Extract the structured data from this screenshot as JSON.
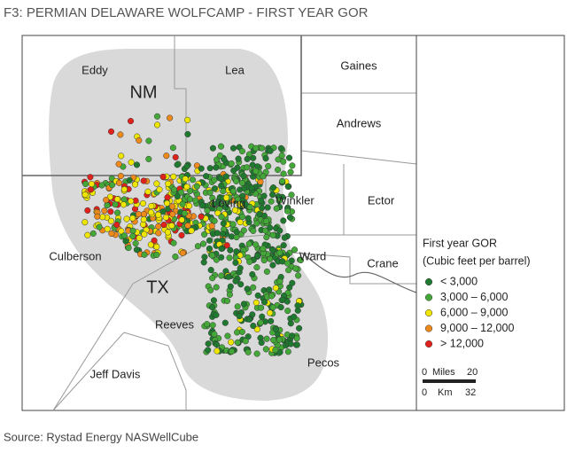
{
  "title": "F3:  PERMIAN DELAWARE WOLFCAMP - FIRST YEAR GOR",
  "source": "Source: Rystad Energy NASWellCube",
  "map": {
    "states": [
      {
        "label": "NM"
      },
      {
        "label": "TX"
      }
    ],
    "counties": [
      {
        "label": "Eddy"
      },
      {
        "label": "Lea"
      },
      {
        "label": "Gaines"
      },
      {
        "label": "Andrews"
      },
      {
        "label": "Winkler"
      },
      {
        "label": "Ector"
      },
      {
        "label": "Loving"
      },
      {
        "label": "Ward"
      },
      {
        "label": "Crane"
      },
      {
        "label": "Culberson"
      },
      {
        "label": "Reeves"
      },
      {
        "label": "Pecos"
      },
      {
        "label": "Jeff Davis"
      }
    ]
  },
  "legend": {
    "title": "First year GOR",
    "subtitle": "(Cubic feet per barrel)",
    "items": [
      {
        "label": "< 3,000",
        "color": "#1f7a30"
      },
      {
        "label": "3,000 – 6,000",
        "color": "#43a838"
      },
      {
        "label": "6,000 – 9,000",
        "color": "#eee600"
      },
      {
        "label": "9,000 – 12,000",
        "color": "#ee8a1c"
      },
      {
        "label": "> 12,000",
        "color": "#e0221c"
      }
    ]
  },
  "scale": {
    "miles": [
      "0",
      "Miles",
      "20"
    ],
    "km": [
      "0",
      "Km",
      "32"
    ]
  }
}
